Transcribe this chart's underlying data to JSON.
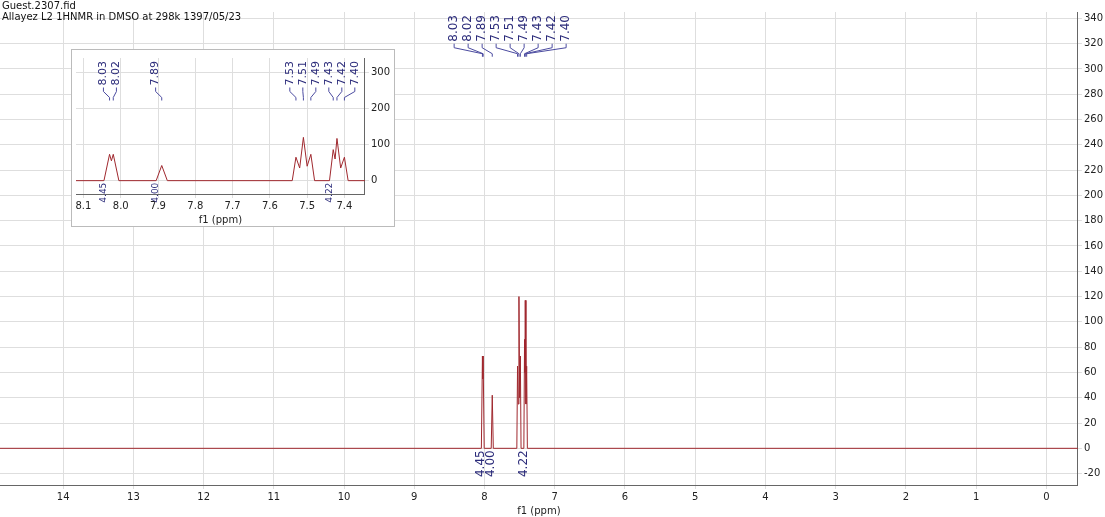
{
  "chart_data": [
    {
      "type": "line",
      "title": "Guest.2307.fid",
      "subtitle": "Allayez L2 1HNMR in DMSO at 298k 1397/05/23",
      "xlabel": "f1 (ppm)",
      "x": [
        14.9,
        8.045,
        8.03,
        8.025,
        8.02,
        8.005,
        7.905,
        7.89,
        7.875,
        7.54,
        7.53,
        7.52,
        7.51,
        7.5,
        7.49,
        7.48,
        7.44,
        7.43,
        7.425,
        7.42,
        7.41,
        7.4,
        7.39,
        -0.45
      ],
      "series": [
        {
          "color": "#a0282e",
          "values": [
            0,
            0,
            73,
            55,
            73,
            0,
            0,
            42,
            0,
            0,
            65,
            35,
            120,
            40,
            73,
            0,
            0,
            86,
            60,
            117,
            35,
            65,
            0,
            0
          ]
        }
      ],
      "xlim": [
        14.9,
        -0.45
      ],
      "xticks": [
        14,
        13,
        12,
        11,
        10,
        9,
        8,
        7,
        6,
        5,
        4,
        3,
        2,
        1,
        0
      ],
      "ylim": [
        -29,
        345
      ],
      "yticks": [
        -20,
        0,
        20,
        40,
        60,
        80,
        100,
        120,
        140,
        160,
        180,
        200,
        220,
        240,
        260,
        280,
        300,
        320,
        340
      ],
      "grid": true,
      "legend": false,
      "marker": "none",
      "line_style": "solid",
      "annotations": [
        "8.03",
        "8.02",
        "7.89",
        "7.53",
        "7.51",
        "7.49",
        "7.43",
        "7.42",
        "7.40",
        {
          "text": "4.45",
          "x": 8.045,
          "y": 0
        },
        {
          "text": "4.00",
          "x": 7.905,
          "y": 0
        },
        {
          "text": "4.22",
          "x": 7.44,
          "y": 0
        }
      ]
    },
    {
      "type": "line",
      "xlabel": "f1 (ppm)",
      "x": [
        8.12,
        8.045,
        8.03,
        8.025,
        8.02,
        8.005,
        7.905,
        7.89,
        7.875,
        7.54,
        7.53,
        7.52,
        7.51,
        7.5,
        7.49,
        7.48,
        7.44,
        7.43,
        7.425,
        7.42,
        7.41,
        7.4,
        7.39,
        7.345
      ],
      "series": [
        {
          "color": "#a0282e",
          "values": [
            0,
            0,
            73,
            55,
            73,
            0,
            0,
            42,
            0,
            0,
            65,
            35,
            120,
            40,
            73,
            0,
            0,
            86,
            60,
            117,
            35,
            65,
            0,
            0
          ]
        }
      ],
      "xlim": [
        8.12,
        7.345
      ],
      "xticks": [
        8.1,
        {
          "value": 8,
          "label": "8.0"
        },
        7.9,
        7.8,
        7.7,
        7.6,
        7.5,
        7.4
      ],
      "ylim": [
        -37,
        340
      ],
      "yticks": [
        0,
        100,
        200,
        300
      ],
      "grid": true,
      "legend": false,
      "marker": "none",
      "line_style": "solid",
      "annotations": [
        "8.03",
        "8.02",
        "7.89",
        "7.53",
        "7.51",
        "7.49",
        "7.43",
        "7.42",
        "7.40",
        {
          "text": "4.45",
          "x": 8.045,
          "y": 0
        },
        {
          "text": "4.00",
          "x": 7.905,
          "y": 0
        },
        {
          "text": "4.22",
          "x": 7.44,
          "y": 0
        }
      ]
    }
  ]
}
